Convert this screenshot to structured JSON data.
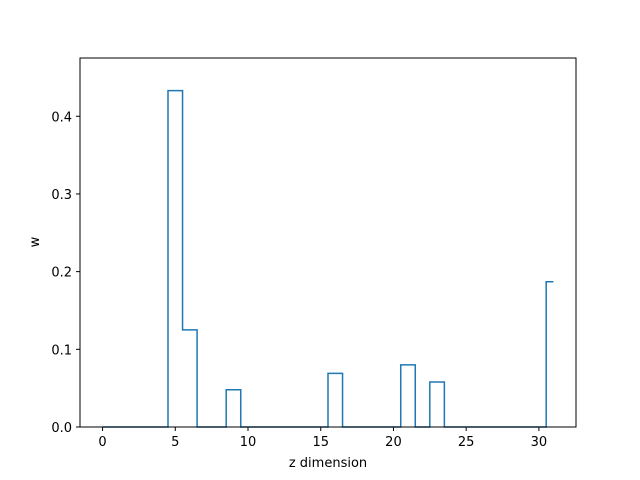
{
  "chart_data": {
    "type": "line",
    "drawstyle": "steps-mid",
    "xlabel": "z dimension",
    "ylabel": "w",
    "xlim": [
      -1.55,
      32.55
    ],
    "ylim": [
      0.0,
      0.475
    ],
    "xticks": [
      0,
      5,
      10,
      15,
      20,
      25,
      30
    ],
    "yticks": [
      0.0,
      0.1,
      0.2,
      0.3,
      0.4
    ],
    "ytick_labels": [
      "0.0",
      "0.1",
      "0.2",
      "0.3",
      "0.4"
    ],
    "grid": false,
    "series": [
      {
        "color": "#1f77b4",
        "x": [
          0,
          1,
          2,
          3,
          4,
          5,
          6,
          7,
          8,
          9,
          10,
          11,
          12,
          13,
          14,
          15,
          16,
          17,
          18,
          19,
          20,
          21,
          22,
          23,
          24,
          25,
          26,
          27,
          28,
          29,
          30,
          31
        ],
        "values": [
          0,
          0,
          0,
          0,
          0,
          0.433,
          0.125,
          0,
          0,
          0.048,
          0,
          0,
          0,
          0,
          0,
          0,
          0.069,
          0,
          0,
          0,
          0,
          0.08,
          0,
          0.058,
          0,
          0,
          0,
          0,
          0,
          0,
          0,
          0.187
        ]
      }
    ]
  }
}
